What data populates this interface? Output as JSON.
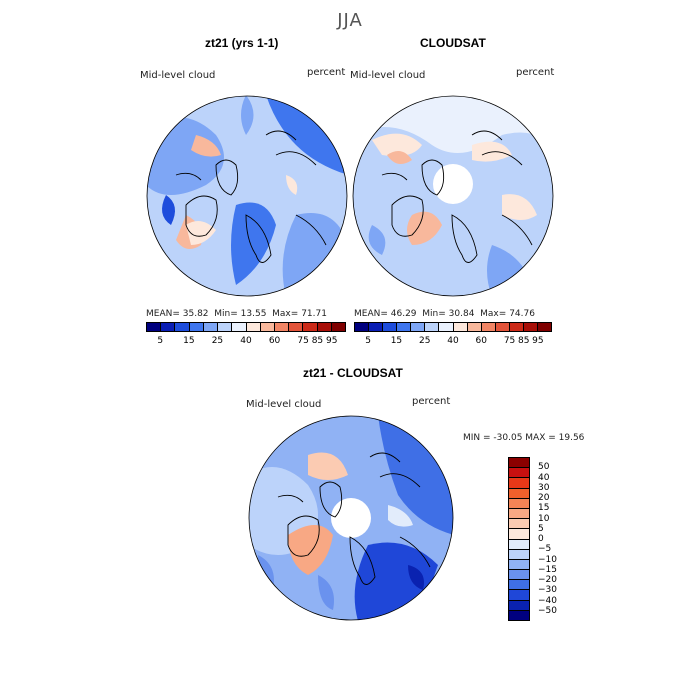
{
  "season": "JJA",
  "panels": [
    {
      "title": "zt21 (yrs 1-1)",
      "variable": "Mid-level cloud",
      "units": "percent",
      "stats": {
        "mean_label": "MEAN=",
        "mean": "35.82",
        "min_label": "Min=",
        "min": "13.55",
        "max_label": "Max=",
        "max": "71.71"
      }
    },
    {
      "title": "CLOUDSAT",
      "variable": "Mid-level cloud",
      "units": "percent",
      "stats": {
        "mean_label": "MEAN=",
        "mean": "46.29",
        "min_label": "Min=",
        "min": "30.84",
        "max_label": "Max=",
        "max": "74.76"
      }
    }
  ],
  "shared_colorbar": {
    "tick_labels": [
      "5",
      "15",
      "25",
      "40",
      "60",
      "75",
      "85",
      "95"
    ],
    "colors": [
      "#00007f",
      "#0a1eb4",
      "#1e4ddc",
      "#3f76ee",
      "#7ea6f5",
      "#bcd3fa",
      "#eaf1fd",
      "#fde8dc",
      "#f8b89c",
      "#f18565",
      "#e2543a",
      "#cc2a18",
      "#a80f08",
      "#7f0000"
    ]
  },
  "diff_panel": {
    "title": "zt21 - CLOUDSAT",
    "variable": "Mid-level cloud",
    "units": "percent",
    "minmax_text": "MIN = -30.05 MAX =  19.56"
  },
  "diff_colorbar": {
    "levels": [
      "50",
      "40",
      "30",
      "20",
      "15",
      "10",
      "5",
      "0",
      "−5",
      "−10",
      "−15",
      "−20",
      "−30",
      "−40",
      "−50"
    ],
    "colors": [
      "#8b0000",
      "#c81010",
      "#e83818",
      "#f0602c",
      "#f48456",
      "#f8a884",
      "#fbcbb2",
      "#fde8dc",
      "#e2ecfb",
      "#bcd3fa",
      "#90b2f4",
      "#6a92ee",
      "#3f6fe6",
      "#1f47d8",
      "#0a22b0",
      "#00007f"
    ]
  }
}
